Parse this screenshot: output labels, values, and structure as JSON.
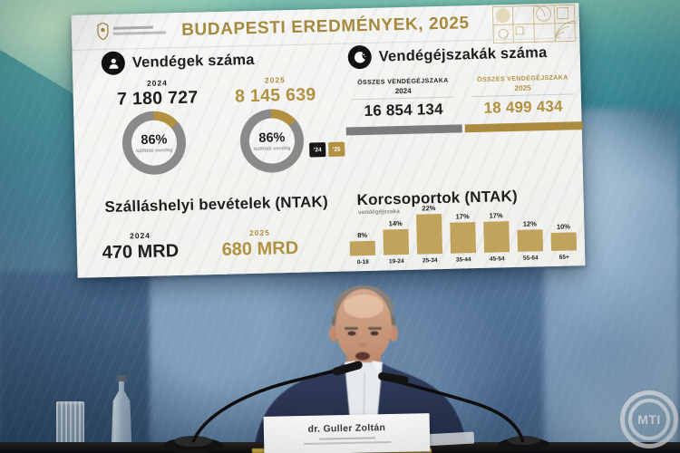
{
  "slide": {
    "title": "BUDAPESTI EREDMÉNYEK, 2025",
    "colors": {
      "gold": "#b29140",
      "black": "#1d1d1b",
      "donut_gray": "#8a8a8a",
      "bar_gold": "#c2a35c",
      "bar_gray": "#7c7c7c"
    },
    "guests": {
      "heading": "Vendégek száma",
      "y2024": {
        "year": "2024",
        "value": "7 180 727"
      },
      "y2025": {
        "year": "2025",
        "value": "8 145 639"
      },
      "donut_2024": {
        "pct": "86%",
        "caption": "külföldi vendég"
      },
      "donut_2025": {
        "pct": "86%",
        "caption": "külföldi vendég"
      },
      "legend": {
        "k24": "'24",
        "k25": "'25"
      }
    },
    "nights": {
      "heading": "Vendégéjszakák száma",
      "c2024": {
        "label": "ÖSSZES VENDÉGÉJSZAKA",
        "year": "2024",
        "value": "16 854 134"
      },
      "c2025": {
        "label": "ÖSSZES VENDÉGÉJSZAKA",
        "year": "2025",
        "value": "18 499 434"
      }
    },
    "revenue": {
      "heading": "Szálláshelyi bevételek (NTAK)",
      "y2024": {
        "year": "2024",
        "value": "470 MRD"
      },
      "y2025": {
        "year": "2025",
        "value": "680 MRD"
      }
    },
    "age_groups": {
      "heading": "Korcsoportok (NTAK)",
      "subtitle": "vendégéjszaka"
    }
  },
  "photo": {
    "nameplate": {
      "name": "dr. Guller Zoltán"
    },
    "watermark": "MTI"
  },
  "chart_data": [
    {
      "type": "pie",
      "title": "Vendégek száma 2024",
      "center_label": "86%",
      "slices": [
        {
          "label": "külföldi vendég",
          "value": 86
        },
        {
          "label": "rest",
          "value": 14
        }
      ]
    },
    {
      "type": "pie",
      "title": "Vendégek száma 2025",
      "center_label": "86%",
      "slices": [
        {
          "label": "külföldi vendég",
          "value": 86
        },
        {
          "label": "rest",
          "value": 14
        }
      ]
    },
    {
      "type": "bar",
      "title": "Korcsoportok (NTAK)",
      "subtitle": "vendégéjszaka",
      "unit": "%",
      "categories": [
        "0-18",
        "19-24",
        "25-34",
        "35-44",
        "45-54",
        "55-64",
        "65+"
      ],
      "values": [
        8,
        14,
        22,
        17,
        17,
        12,
        10
      ],
      "ylim": [
        0,
        25
      ],
      "grid": false
    },
    {
      "type": "table",
      "title": "BUDAPESTI EREDMÉNYEK, 2025",
      "columns": [
        "",
        "2024",
        "2025"
      ],
      "rows": [
        [
          "Vendégek száma",
          "7 180 727",
          "8 145 639"
        ],
        [
          "ÖSSZES VENDÉGÉJSZAKA",
          "16 854 134",
          "18 499 434"
        ],
        [
          "Szálláshelyi bevételek (NTAK)",
          "470 MRD",
          "680 MRD"
        ]
      ]
    }
  ]
}
